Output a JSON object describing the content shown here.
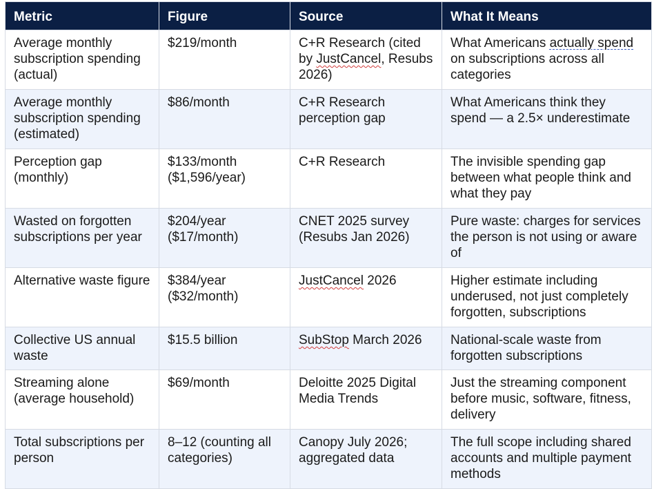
{
  "headers": [
    "Metric",
    "Figure",
    "Source",
    "What It Means"
  ],
  "rows": [
    {
      "metric": "Average monthly subscription spending (actual)",
      "figure": "$219/month",
      "source_a": "C+R Research (cited by ",
      "source_b": "JustCancel",
      "source_c": ", Resubs 2026)",
      "meaning_a": "What Americans ",
      "meaning_b": "actually spend",
      "meaning_c": " on subscriptions across all categories"
    },
    {
      "metric": "Average monthly subscription spending (estimated)",
      "figure": "$86/month",
      "source": "C+R Research perception gap",
      "meaning": "What Americans think they spend — a 2.5× underestimate"
    },
    {
      "metric": "Perception gap (monthly)",
      "figure": "$133/month ($1,596/year)",
      "source": "C+R Research",
      "meaning": "The invisible spending gap between what people think and what they pay"
    },
    {
      "metric": "Wasted on forgotten subscriptions per year",
      "figure": "$204/year ($17/month)",
      "source": "CNET 2025 survey (Resubs Jan 2026)",
      "meaning": "Pure waste: charges for services the person is not using or aware of"
    },
    {
      "metric": "Alternative waste figure",
      "figure": "$384/year ($32/month)",
      "source_a": "JustCancel",
      "source_b": " 2026",
      "meaning": "Higher estimate including underused, not just completely forgotten, subscriptions"
    },
    {
      "metric": "Collective US annual waste",
      "figure": "$15.5 billion",
      "source_a": "SubStop",
      "source_b": " March 2026",
      "meaning": "National-scale waste from forgotten subscriptions"
    },
    {
      "metric": "Streaming alone (average household)",
      "figure": "$69/month",
      "source": "Deloitte 2025 Digital Media Trends",
      "meaning": "Just the streaming component before music, software, fitness, delivery"
    },
    {
      "metric": "Total subscriptions per person",
      "figure": "8–12 (counting all categories)",
      "source": "Canopy July 2026; aggregated data",
      "meaning": "The full scope including shared accounts and multiple payment methods"
    }
  ]
}
